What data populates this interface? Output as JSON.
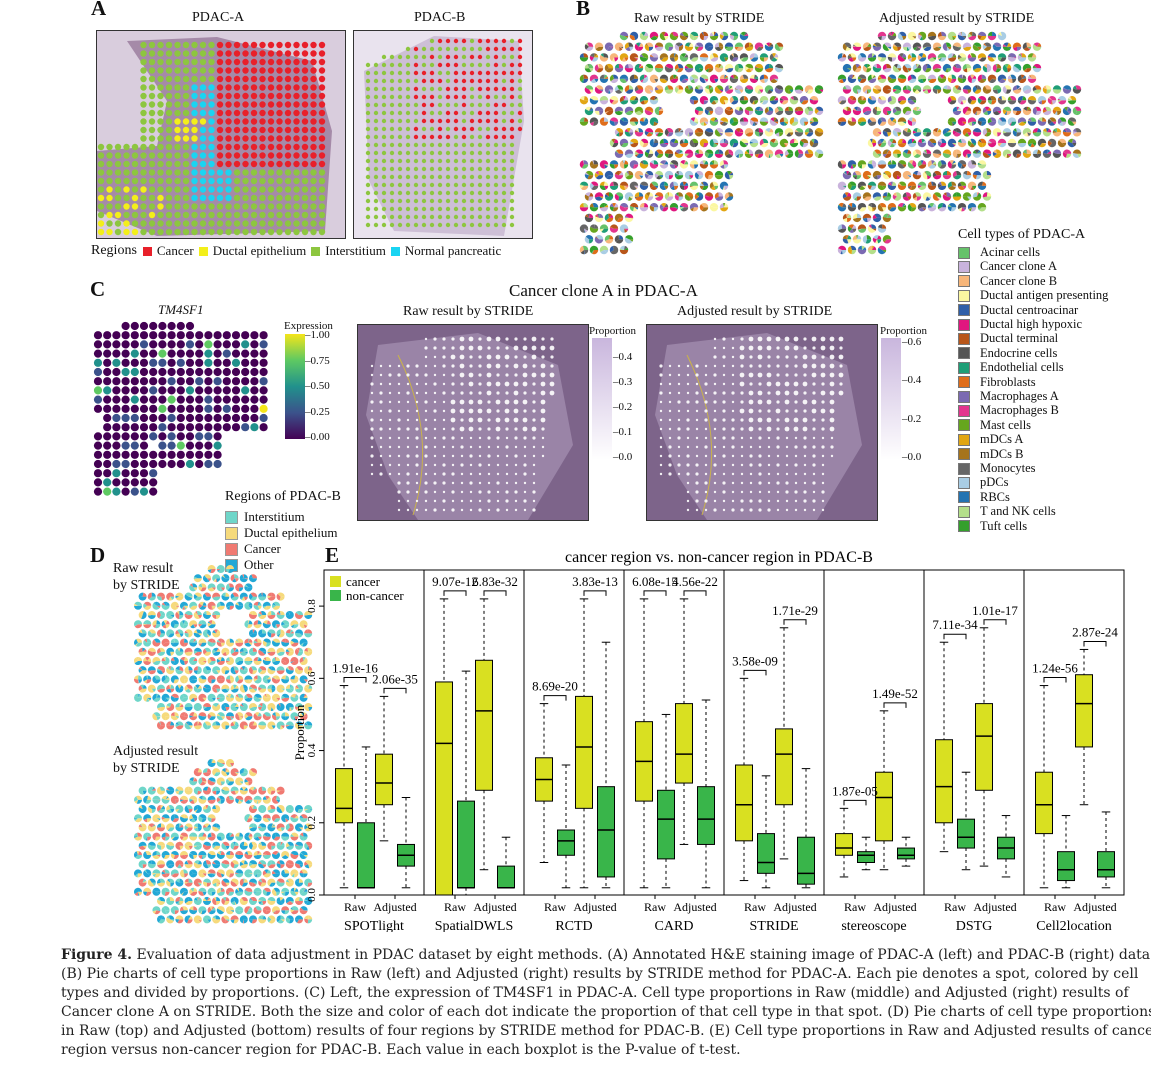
{
  "panelA": {
    "label": "A",
    "titles": [
      "PDAC-A",
      "PDAC-B"
    ],
    "legend_title": "Regions",
    "legend": [
      {
        "name": "Cancer",
        "color": "#e8202a"
      },
      {
        "name": "Ductal epithelium",
        "color": "#f3ef1a"
      },
      {
        "name": "Interstitium",
        "color": "#8dc63f"
      },
      {
        "name": "Normal pancreatic",
        "color": "#1ad4f2"
      }
    ]
  },
  "panelB": {
    "label": "B",
    "titles": [
      "Raw result by STRIDE",
      "Adjusted result by STRIDE"
    ],
    "legend_title": "Cell types of PDAC-A",
    "legend": [
      {
        "name": "Acinar cells",
        "color": "#66c26a"
      },
      {
        "name": "Cancer clone A",
        "color": "#c9b3dc"
      },
      {
        "name": "Cancer clone B",
        "color": "#f7b67a"
      },
      {
        "name": "Ductal antigen presenting",
        "color": "#fbf7a1"
      },
      {
        "name": "Ductal centroacinar",
        "color": "#2f5fa8"
      },
      {
        "name": "Ductal high hypoxic",
        "color": "#e0177f"
      },
      {
        "name": "Ductal terminal",
        "color": "#b8561a"
      },
      {
        "name": "Endocrine cells",
        "color": "#555555"
      },
      {
        "name": "Endothelial cells",
        "color": "#1f9e77"
      },
      {
        "name": "Fibroblasts",
        "color": "#df6d1a"
      },
      {
        "name": "Macrophages A",
        "color": "#7b6ab2"
      },
      {
        "name": "Macrophages B",
        "color": "#e3358e"
      },
      {
        "name": "Mast cells",
        "color": "#66a61e"
      },
      {
        "name": "mDCs A",
        "color": "#e2a612"
      },
      {
        "name": "mDCs B",
        "color": "#a6741c"
      },
      {
        "name": "Monocytes",
        "color": "#666666"
      },
      {
        "name": "pDCs",
        "color": "#a9cde4"
      },
      {
        "name": "RBCs",
        "color": "#2474b2"
      },
      {
        "name": "T and NK cells",
        "color": "#b4df8a"
      },
      {
        "name": "Tuft cells",
        "color": "#34a02c"
      }
    ]
  },
  "panelC": {
    "label": "C",
    "main_title": "Cancer clone A in PDAC-A",
    "gene": "TM4SF1",
    "expr_title": "Expression",
    "expr_ticks": [
      "1.00",
      "0.75",
      "0.50",
      "0.25",
      "0.00"
    ],
    "titles": [
      "Raw result by STRIDE",
      "Adjusted result by STRIDE"
    ],
    "prop_title": "Proportion",
    "raw_ticks": [
      "0.4",
      "0.3",
      "0.2",
      "0.1",
      "0.0"
    ],
    "adj_ticks": [
      "0.6",
      "0.4",
      "0.2",
      "0.0"
    ]
  },
  "panelD": {
    "label": "D",
    "legend_title": "Regions of PDAC-B",
    "legend": [
      {
        "name": "Interstitium",
        "color": "#6fd6c9"
      },
      {
        "name": "Ductal epithelium",
        "color": "#f6da7c"
      },
      {
        "name": "Cancer",
        "color": "#f07a72"
      },
      {
        "name": "Other",
        "color": "#22a8d6"
      }
    ],
    "raw_label": [
      "Raw result",
      "by STRIDE"
    ],
    "adj_label": [
      "Adjusted result",
      "by STRIDE"
    ]
  },
  "panelE": {
    "label": "E"
  },
  "chart_data": {
    "type": "box",
    "title": "cancer region vs. non-cancer region in PDAC-B",
    "ylabel": "Proportion",
    "ylim": [
      0,
      0.9
    ],
    "yticks": [
      "0.0",
      "0.2",
      "0.4",
      "0.6",
      "0.8"
    ],
    "legend": [
      {
        "name": "cancer",
        "color": "#d9e021"
      },
      {
        "name": "non-cancer",
        "color": "#39b54a"
      }
    ],
    "legend_position": "top-left",
    "group_labels": [
      "Raw",
      "Adjusted"
    ],
    "methods": [
      {
        "name": "SPOTlight",
        "pvalues": [
          "1.91e-16",
          "2.06e-35"
        ],
        "boxes": [
          [
            0.02,
            0.2,
            0.24,
            0.35,
            0.58
          ],
          [
            0.02,
            0.02,
            0.02,
            0.2,
            0.41
          ],
          [
            0.15,
            0.25,
            0.31,
            0.39,
            0.55
          ],
          [
            0.02,
            0.08,
            0.11,
            0.14,
            0.27
          ]
        ]
      },
      {
        "name": "SpatialDWLS",
        "pvalues": [
          "9.07e-12",
          "6.83e-32"
        ],
        "boxes": [
          [
            0.0,
            0.0,
            0.42,
            0.59,
            0.82
          ],
          [
            0.0,
            0.02,
            0.02,
            0.26,
            0.62
          ],
          [
            0.07,
            0.29,
            0.51,
            0.65,
            0.82
          ],
          [
            0.02,
            0.02,
            0.02,
            0.08,
            0.16
          ]
        ]
      },
      {
        "name": "RCTD",
        "pvalues": [
          "8.69e-20",
          "3.83e-13"
        ],
        "boxes": [
          [
            0.09,
            0.26,
            0.32,
            0.38,
            0.53
          ],
          [
            0.02,
            0.11,
            0.15,
            0.18,
            0.36
          ],
          [
            0.02,
            0.24,
            0.41,
            0.55,
            0.82
          ],
          [
            0.02,
            0.05,
            0.18,
            0.3,
            0.7
          ]
        ]
      },
      {
        "name": "CARD",
        "pvalues": [
          "6.08e-15",
          "4.56e-22"
        ],
        "boxes": [
          [
            0.02,
            0.26,
            0.37,
            0.48,
            0.82
          ],
          [
            0.02,
            0.1,
            0.21,
            0.29,
            0.5
          ],
          [
            0.14,
            0.31,
            0.39,
            0.53,
            0.82
          ],
          [
            0.02,
            0.14,
            0.21,
            0.3,
            0.54
          ]
        ]
      },
      {
        "name": "STRIDE",
        "pvalues": [
          "3.58e-09",
          "1.71e-29"
        ],
        "boxes": [
          [
            0.04,
            0.15,
            0.25,
            0.36,
            0.6
          ],
          [
            0.02,
            0.06,
            0.09,
            0.17,
            0.33
          ],
          [
            0.1,
            0.25,
            0.39,
            0.46,
            0.74
          ],
          [
            0.02,
            0.03,
            0.06,
            0.16,
            0.35
          ]
        ]
      },
      {
        "name": "stereoscope",
        "pvalues": [
          "1.87e-05",
          "1.49e-52"
        ],
        "boxes": [
          [
            0.05,
            0.11,
            0.13,
            0.17,
            0.24
          ],
          [
            0.07,
            0.09,
            0.11,
            0.12,
            0.16
          ],
          [
            0.07,
            0.15,
            0.27,
            0.34,
            0.51
          ],
          [
            0.08,
            0.1,
            0.11,
            0.13,
            0.16
          ]
        ]
      },
      {
        "name": "DSTG",
        "pvalues": [
          "7.11e-34",
          "1.01e-17"
        ],
        "boxes": [
          [
            0.12,
            0.2,
            0.3,
            0.43,
            0.7
          ],
          [
            0.07,
            0.13,
            0.16,
            0.21,
            0.34
          ],
          [
            0.08,
            0.29,
            0.44,
            0.53,
            0.74
          ],
          [
            0.05,
            0.1,
            0.13,
            0.16,
            0.22
          ]
        ]
      },
      {
        "name": "Cell2location",
        "pvalues": [
          "1.24e-56",
          "2.87e-24"
        ],
        "boxes": [
          [
            0.02,
            0.17,
            0.25,
            0.34,
            0.58
          ],
          [
            0.02,
            0.04,
            0.07,
            0.12,
            0.22
          ],
          [
            0.25,
            0.41,
            0.53,
            0.61,
            0.68
          ],
          [
            0.02,
            0.05,
            0.07,
            0.12,
            0.23
          ]
        ]
      }
    ]
  },
  "caption": {
    "fig": "Figure 4.",
    "lines": [
      " Evaluation of data adjustment in PDAC dataset by eight methods. (A) Annotated H&E staining image of PDAC-A (left) and PDAC-B (right) data.",
      "(B) Pie charts of cell type proportions in Raw (left) and Adjusted (right) results by STRIDE method for PDAC-A. Each pie denotes a spot, colored by cell",
      "types and divided by proportions. (C) Left, the expression of TM4SF1 in PDAC-A. Cell type proportions in Raw (middle) and Adjusted (right) results of",
      "Cancer clone A on STRIDE. Both the size and color of each dot indicate the proportion of that cell type in that spot. (D) Pie charts of cell type proportions",
      "in Raw (top) and Adjusted (bottom) results of four regions by STRIDE method for PDAC-B. (E) Cell type proportions in Raw and Adjusted results of cancer",
      "region versus non-cancer region for PDAC-B. Each value in each boxplot is the P-value of t-test."
    ]
  }
}
